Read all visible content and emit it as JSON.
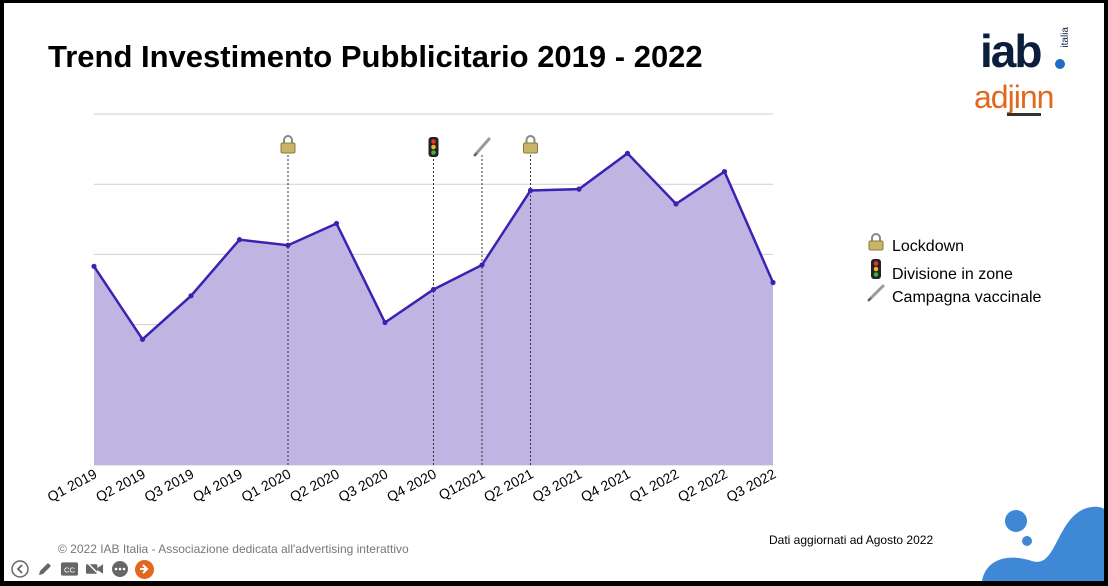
{
  "slide": {
    "title": "Trend Investimento Pubblicitario 2019 - 2022",
    "logo_iab": "iab",
    "logo_iab_sub": "italia",
    "logo_adjinn": "adjinn",
    "footnote": "Dati aggiornati ad Agosto 2022",
    "copyright": "© 2022 IAB Italia - Associazione dedicata all'advertising interattivo"
  },
  "legend": [
    {
      "icon": "lock-icon",
      "label": "Lockdown"
    },
    {
      "icon": "traffic-light-icon",
      "label": "Divisione in zone"
    },
    {
      "icon": "syringe-icon",
      "label": "Campagna vaccinale"
    }
  ],
  "chart_data": {
    "type": "area",
    "title": "",
    "xlabel": "",
    "ylabel": "",
    "grid": true,
    "categories": [
      "Q1 2019",
      "Q2 2019",
      "Q3 2019",
      "Q4 2019",
      "Q1 2020",
      "Q2 2020",
      "Q3 2020",
      "Q4 2020",
      "Q12021",
      "Q2 2021",
      "Q3 2021",
      "Q4 2021",
      "Q1 2022",
      "Q2 2022",
      "Q3 2022"
    ],
    "values": [
      2.83,
      1.79,
      2.41,
      3.21,
      3.13,
      3.44,
      2.03,
      2.5,
      2.85,
      3.91,
      3.93,
      4.44,
      3.72,
      4.18,
      2.6
    ],
    "ylim": [
      0,
      5
    ],
    "markers": [
      {
        "category": "Q1 2020",
        "icon": "lock-icon"
      },
      {
        "category": "Q4 2020",
        "icon": "traffic-light-icon"
      },
      {
        "category": "Q12021",
        "icon": "syringe-icon"
      },
      {
        "category": "Q2 2021",
        "icon": "lock-icon"
      }
    ],
    "colors": {
      "line": "#3c22b0",
      "fill": "#c0b4e3"
    }
  },
  "toolbar": [
    {
      "icon": "back-arrow-icon",
      "active": false
    },
    {
      "icon": "pen-icon",
      "active": false
    },
    {
      "icon": "captions-icon",
      "active": false
    },
    {
      "icon": "camera-off-icon",
      "active": false
    },
    {
      "icon": "more-icon",
      "active": false
    },
    {
      "icon": "next-arrow-icon",
      "active": true
    }
  ]
}
